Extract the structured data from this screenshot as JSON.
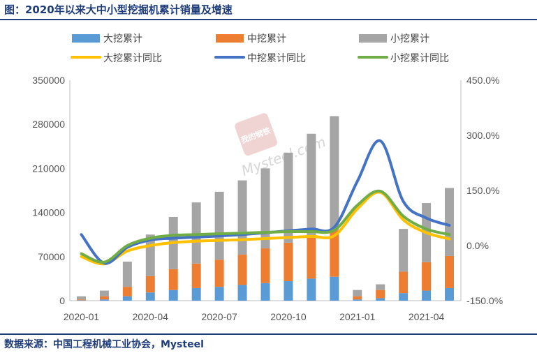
{
  "title": "图：2020年以来大中小型挖掘机累计销量及增速",
  "source": "数据来源：中国工程机械工业协会，Mysteel",
  "watermark": {
    "logo_text": "我的钢铁",
    "brand": "Mysteel.com"
  },
  "colors": {
    "big_bar": "#5b9bd5",
    "mid_bar": "#ed7d31",
    "small_bar": "#a5a5a5",
    "big_line": "#ffc000",
    "mid_line": "#4472c4",
    "small_line": "#70ad47",
    "rule": "#1f3d7a"
  },
  "chart_data": {
    "type": "bar",
    "stacked": true,
    "secondary_axis": true,
    "x": [
      "2020-01",
      "2020-02",
      "2020-03",
      "2020-04",
      "2020-05",
      "2020-06",
      "2020-07",
      "2020-08",
      "2020-09",
      "2020-10",
      "2020-11",
      "2020-12",
      "2021-01",
      "2021-02",
      "2021-03",
      "2021-04",
      "2021-05"
    ],
    "x_tick_labels": [
      "2020-01",
      "2020-04",
      "2020-07",
      "2020-10",
      "2021-01",
      "2021-04"
    ],
    "y_left": {
      "min": 0,
      "max": 350000,
      "ticks": [
        "0",
        "70000",
        "140000",
        "210000",
        "280000",
        "350000"
      ]
    },
    "y_right": {
      "min": -150,
      "max": 450,
      "ticks": [
        "-150.0%",
        "0.0%",
        "150.0%",
        "300.0%",
        "450.0%"
      ]
    },
    "series": [
      {
        "name": "大挖累计",
        "kind": "bar",
        "axis": "left",
        "values": [
          700,
          2000,
          7000,
          13000,
          17000,
          20000,
          22000,
          25000,
          28000,
          31000,
          35000,
          38000,
          2000,
          4000,
          12000,
          16000,
          20000
        ]
      },
      {
        "name": "中挖累计",
        "kind": "bar",
        "axis": "left",
        "values": [
          1300,
          5000,
          15000,
          26000,
          33000,
          39000,
          43000,
          48000,
          55000,
          61000,
          67000,
          74000,
          5000,
          13000,
          34000,
          45000,
          51000
        ]
      },
      {
        "name": "小挖累计",
        "kind": "bar",
        "axis": "left",
        "values": [
          5000,
          9000,
          40000,
          66000,
          83000,
          97000,
          108000,
          118000,
          127000,
          143000,
          163000,
          181000,
          10000,
          9000,
          68000,
          94000,
          108000
        ]
      },
      {
        "name": "大挖累计同比",
        "kind": "line",
        "axis": "right",
        "values": [
          -30,
          -50,
          -15,
          0,
          8,
          12,
          14,
          16,
          19,
          22,
          25,
          27,
          100,
          145,
          70,
          35,
          18
        ]
      },
      {
        "name": "中挖累计同比",
        "kind": "line",
        "axis": "right",
        "values": [
          30,
          -48,
          -5,
          15,
          20,
          23,
          26,
          30,
          35,
          40,
          45,
          50,
          175,
          285,
          120,
          75,
          55
        ]
      },
      {
        "name": "小挖累计同比",
        "kind": "line",
        "axis": "right",
        "values": [
          -22,
          -45,
          0,
          20,
          28,
          30,
          32,
          34,
          36,
          38,
          38,
          42,
          110,
          148,
          80,
          45,
          30
        ]
      }
    ],
    "legend_position": "top",
    "grid": false
  }
}
